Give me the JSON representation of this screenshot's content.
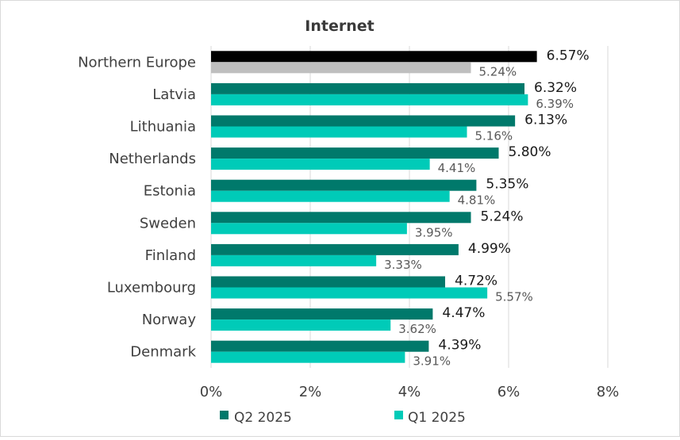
{
  "chart_data": {
    "type": "bar",
    "orientation": "horizontal",
    "title": "Internet",
    "categories": [
      "Northern Europe",
      "Latvia",
      "Lithuania",
      "Netherlands",
      "Estonia",
      "Sweden",
      "Finland",
      "Luxembourg",
      "Norway",
      "Denmark"
    ],
    "series": [
      {
        "name": "Q2 2025",
        "values": [
          6.57,
          6.32,
          6.13,
          5.8,
          5.35,
          5.24,
          4.99,
          4.72,
          4.47,
          4.39
        ],
        "labels": [
          "6.57%",
          "6.32%",
          "6.13%",
          "5.80%",
          "5.35%",
          "5.24%",
          "4.99%",
          "4.72%",
          "4.47%",
          "4.39%"
        ],
        "color": "#00796b",
        "highlight_color": "#000000"
      },
      {
        "name": "Q1 2025",
        "values": [
          5.24,
          6.39,
          5.16,
          4.41,
          4.81,
          3.95,
          3.33,
          5.57,
          3.62,
          3.91
        ],
        "labels": [
          "5.24%",
          "6.39%",
          "5.16%",
          "4.41%",
          "4.81%",
          "3.95%",
          "3.33%",
          "5.57%",
          "3.62%",
          "3.91%"
        ],
        "color": "#00cbb8",
        "highlight_color": "#bfbfbf"
      }
    ],
    "xlim": [
      0,
      8
    ],
    "xticks": [
      0,
      2,
      4,
      6,
      8
    ],
    "xtick_labels": [
      "0%",
      "2%",
      "4%",
      "6%",
      "8%"
    ],
    "grid": true,
    "legend": "bottom"
  }
}
